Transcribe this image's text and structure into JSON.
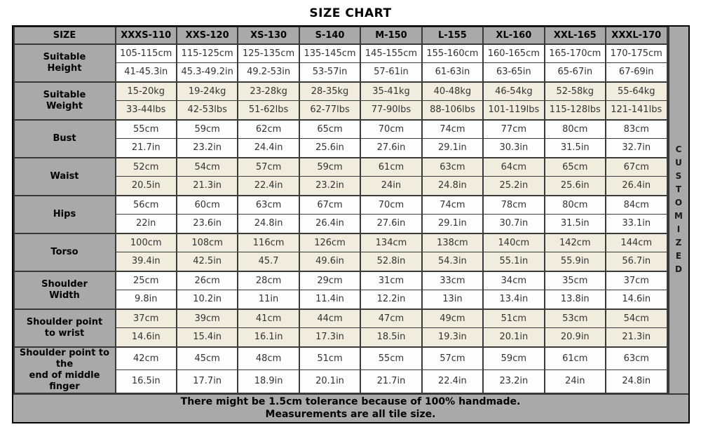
{
  "title": "SIZE CHART",
  "table": {
    "size_header": "SIZE",
    "size_columns": [
      "XXXS-110",
      "XXS-120",
      "XS-130",
      "S-140",
      "M-150",
      "L-155",
      "XL-160",
      "XXL-165",
      "XXXL-170"
    ],
    "rows": [
      {
        "label_lines": [
          "Suitable",
          "Height"
        ],
        "cm": [
          "105-115cm",
          "115-125cm",
          "125-135cm",
          "135-145cm",
          "145-155cm",
          "155-160cm",
          "160-165cm",
          "165-170cm",
          "170-175cm"
        ],
        "in": [
          "41-45.3in",
          "45.3-49.2in",
          "49.2-53in",
          "53-57in",
          "57-61in",
          "61-63in",
          "63-65in",
          "65-67in",
          "67-69in"
        ]
      },
      {
        "label_lines": [
          "Suitable",
          "Weight"
        ],
        "cm": [
          "15-20kg",
          "19-24kg",
          "23-28kg",
          "28-35kg",
          "35-41kg",
          "40-48kg",
          "46-54kg",
          "52-58kg",
          "55-64kg"
        ],
        "in": [
          "33-44lbs",
          "42-53lbs",
          "51-62lbs",
          "62-77lbs",
          "77-90lbs",
          "88-106lbs",
          "101-119lbs",
          "115-128lbs",
          "121-141lbs"
        ]
      },
      {
        "label_lines": [
          "Bust"
        ],
        "cm": [
          "55cm",
          "59cm",
          "62cm",
          "65cm",
          "70cm",
          "74cm",
          "77cm",
          "80cm",
          "83cm"
        ],
        "in": [
          "21.7in",
          "23.2in",
          "24.4in",
          "25.6in",
          "27.6in",
          "29.1in",
          "30.3in",
          "31.5in",
          "32.7in"
        ]
      },
      {
        "label_lines": [
          "Waist"
        ],
        "cm": [
          "52cm",
          "54cm",
          "57cm",
          "59cm",
          "61cm",
          "63cm",
          "64cm",
          "65cm",
          "67cm"
        ],
        "in": [
          "20.5in",
          "21.3in",
          "22.4in",
          "23.2in",
          "24in",
          "24.8in",
          "25.2in",
          "25.6in",
          "26.4in"
        ]
      },
      {
        "label_lines": [
          "Hips"
        ],
        "cm": [
          "56cm",
          "60cm",
          "63cm",
          "67cm",
          "70cm",
          "74cm",
          "78cm",
          "80cm",
          "84cm"
        ],
        "in": [
          "22in",
          "23.6in",
          "24.8in",
          "26.4in",
          "27.6in",
          "29.1in",
          "30.7in",
          "31.5in",
          "33.1in"
        ]
      },
      {
        "label_lines": [
          "Torso"
        ],
        "cm": [
          "100cm",
          "108cm",
          "116cm",
          "126cm",
          "134cm",
          "138cm",
          "140cm",
          "142cm",
          "144cm"
        ],
        "in": [
          "39.4in",
          "42.5in",
          "45.7",
          "49.6in",
          "52.8in",
          "54.3in",
          "55.1in",
          "55.9in",
          "56.7in"
        ]
      },
      {
        "label_lines": [
          "Shoulder",
          "Width"
        ],
        "cm": [
          "25cm",
          "26cm",
          "28cm",
          "29cm",
          "31cm",
          "33cm",
          "34cm",
          "35cm",
          "37cm"
        ],
        "in": [
          "9.8in",
          "10.2in",
          "11in",
          "11.4in",
          "12.2in",
          "13in",
          "13.4in",
          "13.8in",
          "14.6in"
        ]
      },
      {
        "label_lines": [
          "Shoulder point",
          "to wrist"
        ],
        "cm": [
          "37cm",
          "39cm",
          "41cm",
          "44cm",
          "47cm",
          "49cm",
          "51cm",
          "53cm",
          "54cm"
        ],
        "in": [
          "14.6in",
          "15.4in",
          "16.1in",
          "17.3in",
          "18.5in",
          "19.3in",
          "20.1in",
          "20.9in",
          "21.3in"
        ]
      },
      {
        "label_lines": [
          "Shoulder point to the",
          "end of middle finger"
        ],
        "cm": [
          "42cm",
          "45cm",
          "48cm",
          "51cm",
          "55cm",
          "57cm",
          "59cm",
          "61cm",
          "63cm"
        ],
        "in": [
          "16.5in",
          "17.7in",
          "18.9in",
          "20.1in",
          "21.7in",
          "22.4in",
          "23.2in",
          "24in",
          "24.8in"
        ]
      }
    ]
  },
  "right_banner": "CUSTOMIZED",
  "footer": {
    "line1": "There might be 1.5cm tolerance because of 100% handmade.",
    "line2": "Measurements are all tile size."
  },
  "colors": {
    "header_bg": "#a9a9a9",
    "row_bg": "#fdfdfd",
    "row_alt_bg": "#f0edde",
    "border": "#3a3a3a"
  }
}
